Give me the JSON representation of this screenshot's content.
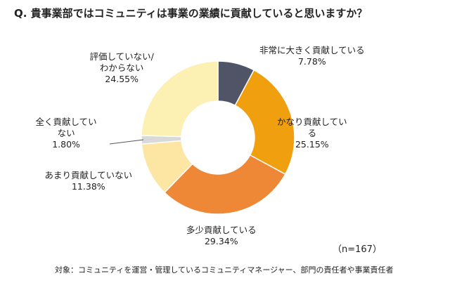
{
  "title": "Q. 貴事業部ではコミュニティは事業の業績に貢献していると思いますか？",
  "chart_data": {
    "type": "pie",
    "variant": "donut",
    "categories": [
      "非常に大きく貢献している",
      "かなり貢献している",
      "多少貢献している",
      "あまり貢献していない",
      "全く貢献していない",
      "評価していない/わからない"
    ],
    "values": [
      7.78,
      25.15,
      29.34,
      11.38,
      1.8,
      24.55
    ],
    "colors": [
      "#4f5466",
      "#f0a00f",
      "#ee8736",
      "#fde5a3",
      "#d9d9d9",
      "#fdf0b3"
    ],
    "labels": [
      {
        "lines": [
          "非常に大きく貢献している"
        ],
        "pct": "7.78%"
      },
      {
        "lines": [
          "かなり貢献してい",
          "る"
        ],
        "pct": "25.15%"
      },
      {
        "lines": [
          "多少貢献している"
        ],
        "pct": "29.34%"
      },
      {
        "lines": [
          "あまり貢献していない"
        ],
        "pct": "11.38%"
      },
      {
        "lines": [
          "全く貢献してい",
          "ない"
        ],
        "pct": "1.80%"
      },
      {
        "lines": [
          "評価していない/",
          "わからない"
        ],
        "pct": "24.55%"
      }
    ],
    "legend": "none"
  },
  "n_label": "（n=167）",
  "footnote": "対象：コミュニティを運営・管理しているコミュニティマネージャー、部門の責任者や事業責任者"
}
